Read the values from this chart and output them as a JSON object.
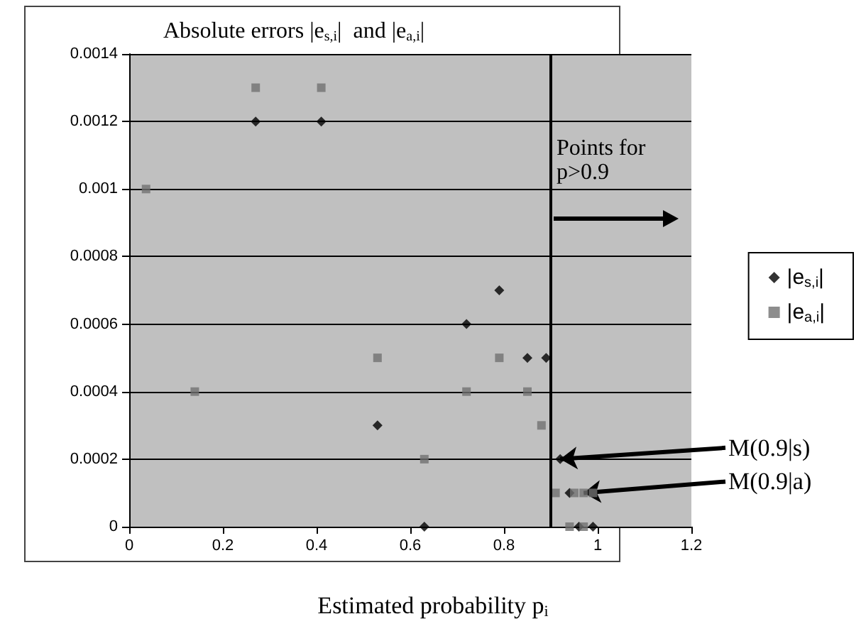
{
  "chart_data": {
    "type": "scatter",
    "title": "Absolute errors |e$_{s,i}$|  and |e$_{a,i}$|",
    "xlabel": "Estimated probability p$_{i}$",
    "series": [
      {
        "name": "|e$_{s,i}$|",
        "color": "#000000",
        "marker": "diamond",
        "x": [
          0.27,
          0.41,
          0.79,
          0.72,
          0.85,
          0.89,
          0.53,
          0.92,
          0.63,
          0.94,
          0.96,
          0.99
        ],
        "values": [
          0.0012,
          0.0012,
          0.0007,
          0.0006,
          0.0005,
          0.0005,
          0.0003,
          0.0002,
          0,
          0.0001,
          0,
          0
        ]
      },
      {
        "name": "|e$_{a,i}$|",
        "color": "#707070",
        "marker": "square",
        "x": [
          0.036,
          0.14,
          0.27,
          0.41,
          0.53,
          0.79,
          0.72,
          0.85,
          0.88,
          0.63,
          0.91,
          0.95,
          0.97,
          0.99,
          0.94,
          0.97
        ],
        "values": [
          0.001,
          0.0004,
          0.0013,
          0.0013,
          0.0005,
          0.0005,
          0.0004,
          0.0004,
          0.0003,
          0.0002,
          0.0001,
          0.0001,
          0.0001,
          0.0001,
          0,
          0
        ]
      }
    ],
    "xlim": [
      0,
      1.2
    ],
    "xticks": [
      0,
      0.2,
      0.4,
      0.6,
      0.8,
      1,
      1.2
    ],
    "ylim": [
      0,
      0.0014
    ],
    "yticks": [
      0,
      0.0002,
      0.0004,
      0.0006,
      0.0008,
      0.001,
      0.0012,
      0.0014
    ],
    "ref_lines": [
      {
        "axis": "x",
        "value": 0.9,
        "label": "Points for p>0.9",
        "color": "#000000"
      }
    ],
    "annotations": [
      {
        "text": "M(0.9|s)",
        "x": 0.92,
        "y": 0.0002
      },
      {
        "text": "M(0.9|a)",
        "x": 0.97,
        "y": 0.0001
      }
    ],
    "grid": "y",
    "legend": "right"
  }
}
